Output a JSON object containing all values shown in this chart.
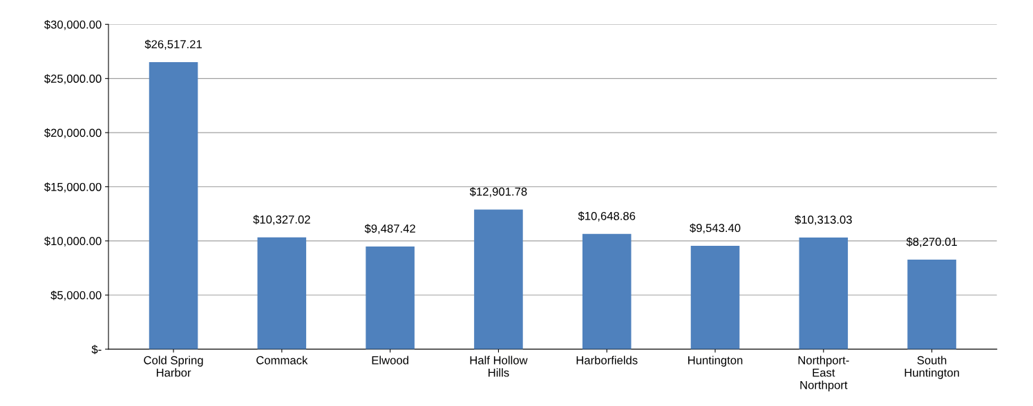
{
  "chart_data": {
    "type": "bar",
    "categories": [
      "Cold Spring Harbor",
      "Commack",
      "Elwood",
      "Half Hollow Hills",
      "Harborfields",
      "Huntington",
      "Northport-East Northport",
      "South Huntington"
    ],
    "values": [
      26517.21,
      10327.02,
      9487.42,
      12901.78,
      10648.86,
      9543.4,
      10313.03,
      8270.01
    ],
    "value_labels": [
      "$26,517.21",
      "$10,327.02",
      "$9,487.42",
      "$12,901.78",
      "$10,648.86",
      "$9,543.40",
      "$10,313.03",
      "$8,270.01"
    ],
    "color": "#4f81bd",
    "ylim": [
      0,
      30000
    ],
    "yticks": [
      {
        "value": 0,
        "label": "$-"
      },
      {
        "value": 5000,
        "label": "$5,000.00"
      },
      {
        "value": 10000,
        "label": "$10,000.00"
      },
      {
        "value": 15000,
        "label": "$15,000.00"
      },
      {
        "value": 20000,
        "label": "$20,000.00"
      },
      {
        "value": 25000,
        "label": "$25,000.00"
      },
      {
        "value": 30000,
        "label": "$30,000.00"
      }
    ],
    "grid": "y"
  }
}
